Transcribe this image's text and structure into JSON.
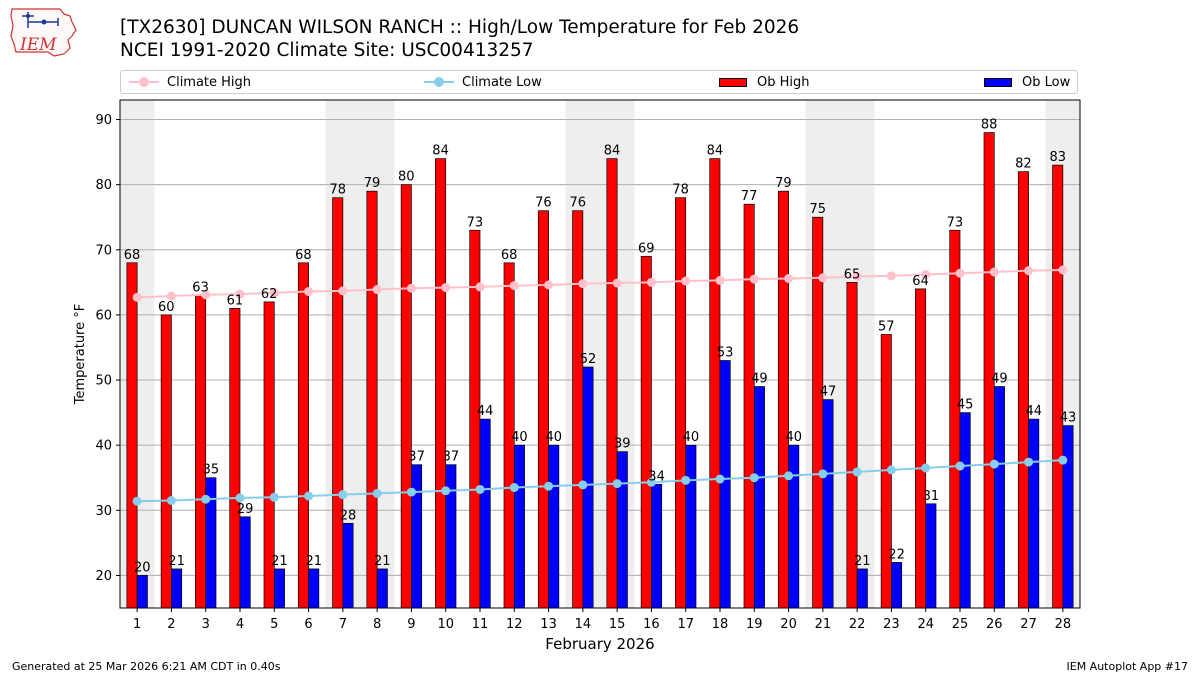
{
  "header": {
    "logo_text": "IEM",
    "title_line1": "[TX2630] DUNCAN WILSON RANCH :: High/Low Temperature for Feb 2026",
    "title_line2": "NCEI 1991-2020 Climate Site: USC00413257"
  },
  "legend": {
    "climate_high": "Climate High",
    "climate_low": "Climate Low",
    "ob_high": "Ob High",
    "ob_low": "Ob Low"
  },
  "colors": {
    "ob_high": "#ff0000",
    "ob_low": "#0000ff",
    "climate_high": "#ffc0cb",
    "climate_low": "#87ceeb",
    "weekend_shade": "#eeeeee",
    "grid": "#b0b0b0"
  },
  "chart_data": {
    "type": "bar",
    "title": "[TX2630] DUNCAN WILSON RANCH :: High/Low Temperature for Feb 2026",
    "xlabel": "February 2026",
    "ylabel": "Temperature °F",
    "ylim": [
      15,
      93
    ],
    "yticks": [
      20,
      30,
      40,
      50,
      60,
      70,
      80,
      90
    ],
    "grid": true,
    "categories": [
      "1",
      "2",
      "3",
      "4",
      "5",
      "6",
      "7",
      "8",
      "9",
      "10",
      "11",
      "12",
      "13",
      "14",
      "15",
      "16",
      "17",
      "18",
      "19",
      "20",
      "21",
      "22",
      "23",
      "24",
      "25",
      "26",
      "27",
      "28"
    ],
    "weekend_days": [
      1,
      7,
      8,
      14,
      15,
      21,
      22,
      28
    ],
    "series": [
      {
        "name": "Ob High",
        "kind": "bar",
        "values": [
          68,
          60,
          63,
          61,
          62,
          68,
          78,
          79,
          80,
          84,
          73,
          68,
          76,
          76,
          84,
          69,
          78,
          84,
          77,
          79,
          75,
          65,
          57,
          64,
          73,
          88,
          82,
          83
        ]
      },
      {
        "name": "Ob Low",
        "kind": "bar",
        "values": [
          20,
          21,
          35,
          29,
          21,
          21,
          28,
          21,
          37,
          37,
          44,
          40,
          40,
          52,
          39,
          34,
          40,
          53,
          49,
          40,
          47,
          21,
          22,
          31,
          45,
          49,
          44,
          43
        ]
      },
      {
        "name": "Climate High",
        "kind": "line",
        "values": [
          62.7,
          62.9,
          63.1,
          63.2,
          63.4,
          63.6,
          63.7,
          63.9,
          64.1,
          64.2,
          64.3,
          64.5,
          64.6,
          64.8,
          64.9,
          65.0,
          65.2,
          65.3,
          65.5,
          65.6,
          65.7,
          65.9,
          66.0,
          66.2,
          66.4,
          66.6,
          66.8,
          66.9
        ]
      },
      {
        "name": "Climate Low",
        "kind": "line",
        "values": [
          31.4,
          31.5,
          31.7,
          31.9,
          32.0,
          32.2,
          32.4,
          32.6,
          32.8,
          33.0,
          33.2,
          33.5,
          33.7,
          33.9,
          34.1,
          34.3,
          34.6,
          34.8,
          35.0,
          35.3,
          35.6,
          35.9,
          36.2,
          36.5,
          36.8,
          37.1,
          37.4,
          37.7
        ]
      }
    ]
  },
  "footer": {
    "generated": "Generated at 25 Mar 2026 6:21 AM CDT in 0.40s",
    "app": "IEM Autoplot App #17"
  }
}
